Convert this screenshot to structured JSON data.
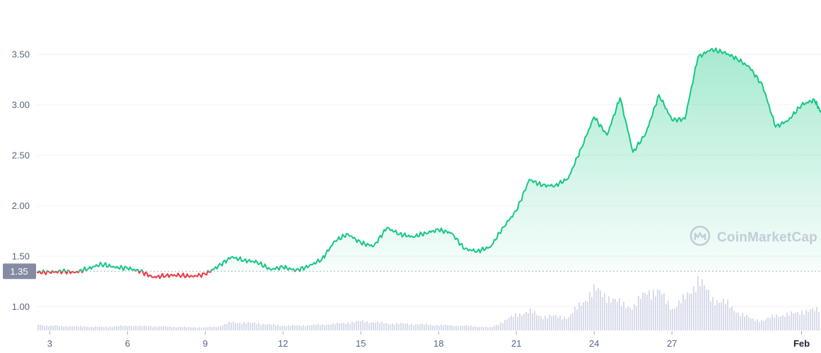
{
  "chart_data": {
    "type": "line",
    "title": "",
    "xlabel": "",
    "ylabel": "",
    "x_range": [
      "2022-01-02T12:00",
      "2022-02-01T18:00"
    ],
    "ylim": [
      0.75,
      3.85
    ],
    "grid": true,
    "reference_line": {
      "value": 1.35,
      "label": "1.35"
    },
    "y_ticks": [
      {
        "value": 1.0,
        "label": "1.00"
      },
      {
        "value": 1.5,
        "label": "1.50"
      },
      {
        "value": 2.0,
        "label": "2.00"
      },
      {
        "value": 2.5,
        "label": "2.50"
      },
      {
        "value": 3.0,
        "label": "3.00"
      },
      {
        "value": 3.5,
        "label": "3.50"
      }
    ],
    "x_ticks": [
      {
        "date": "2022-01-03",
        "label": "3"
      },
      {
        "date": "2022-01-06",
        "label": "6"
      },
      {
        "date": "2022-01-09",
        "label": "9"
      },
      {
        "date": "2022-01-12",
        "label": "12"
      },
      {
        "date": "2022-01-15",
        "label": "15"
      },
      {
        "date": "2022-01-18",
        "label": "18"
      },
      {
        "date": "2022-01-21",
        "label": "21"
      },
      {
        "date": "2022-01-24",
        "label": "24"
      },
      {
        "date": "2022-01-27",
        "label": "27"
      },
      {
        "date": "2022-02-01",
        "label": "Feb"
      }
    ],
    "price_series": {
      "x": [
        "2022-01-02T12:00",
        "2022-01-03T00:00",
        "2022-01-03T12:00",
        "2022-01-04T00:00",
        "2022-01-04T12:00",
        "2022-01-05T00:00",
        "2022-01-05T12:00",
        "2022-01-06T00:00",
        "2022-01-06T12:00",
        "2022-01-07T00:00",
        "2022-01-07T12:00",
        "2022-01-08T00:00",
        "2022-01-08T12:00",
        "2022-01-09T00:00",
        "2022-01-09T12:00",
        "2022-01-10T00:00",
        "2022-01-10T12:00",
        "2022-01-11T00:00",
        "2022-01-11T12:00",
        "2022-01-12T00:00",
        "2022-01-12T12:00",
        "2022-01-13T00:00",
        "2022-01-13T12:00",
        "2022-01-14T00:00",
        "2022-01-14T12:00",
        "2022-01-15T00:00",
        "2022-01-15T12:00",
        "2022-01-16T00:00",
        "2022-01-16T12:00",
        "2022-01-17T00:00",
        "2022-01-17T12:00",
        "2022-01-18T00:00",
        "2022-01-18T12:00",
        "2022-01-19T00:00",
        "2022-01-19T12:00",
        "2022-01-20T00:00",
        "2022-01-20T12:00",
        "2022-01-21T00:00",
        "2022-01-21T12:00",
        "2022-01-22T00:00",
        "2022-01-22T12:00",
        "2022-01-23T00:00",
        "2022-01-23T12:00",
        "2022-01-24T00:00",
        "2022-01-24T12:00",
        "2022-01-25T00:00",
        "2022-01-25T12:00",
        "2022-01-26T00:00",
        "2022-01-26T12:00",
        "2022-01-27T00:00",
        "2022-01-27T12:00",
        "2022-01-28T00:00",
        "2022-01-28T12:00",
        "2022-01-29T00:00",
        "2022-01-29T12:00",
        "2022-01-30T00:00",
        "2022-01-30T12:00",
        "2022-01-31T00:00",
        "2022-01-31T12:00",
        "2022-02-01T00:00",
        "2022-02-01T12:00",
        "2022-02-01T18:00"
      ],
      "values": [
        1.34,
        1.34,
        1.35,
        1.34,
        1.38,
        1.42,
        1.39,
        1.38,
        1.35,
        1.29,
        1.31,
        1.31,
        1.3,
        1.32,
        1.4,
        1.49,
        1.46,
        1.44,
        1.37,
        1.39,
        1.36,
        1.4,
        1.47,
        1.65,
        1.72,
        1.63,
        1.6,
        1.78,
        1.72,
        1.69,
        1.73,
        1.76,
        1.73,
        1.57,
        1.55,
        1.59,
        1.79,
        1.95,
        2.26,
        2.2,
        2.2,
        2.27,
        2.57,
        2.88,
        2.7,
        3.07,
        2.53,
        2.72,
        3.1,
        2.85,
        2.86,
        3.47,
        3.55,
        3.52,
        3.46,
        3.37,
        3.19,
        2.78,
        2.85,
        3.0,
        3.05,
        2.92
      ]
    },
    "volume_series": {
      "x": [
        "2022-01-02T12:00",
        "2022-01-03T00:00",
        "2022-01-04T00:00",
        "2022-01-05T00:00",
        "2022-01-06T00:00",
        "2022-01-07T00:00",
        "2022-01-08T00:00",
        "2022-01-09T00:00",
        "2022-01-09T12:00",
        "2022-01-10T00:00",
        "2022-01-11T00:00",
        "2022-01-12T00:00",
        "2022-01-13T00:00",
        "2022-01-14T00:00",
        "2022-01-15T00:00",
        "2022-01-16T00:00",
        "2022-01-17T00:00",
        "2022-01-18T00:00",
        "2022-01-19T00:00",
        "2022-01-20T00:00",
        "2022-01-20T12:00",
        "2022-01-21T00:00",
        "2022-01-21T12:00",
        "2022-01-22T00:00",
        "2022-01-22T12:00",
        "2022-01-23T00:00",
        "2022-01-23T12:00",
        "2022-01-24T00:00",
        "2022-01-24T12:00",
        "2022-01-25T00:00",
        "2022-01-25T12:00",
        "2022-01-26T00:00",
        "2022-01-26T12:00",
        "2022-01-27T00:00",
        "2022-01-27T12:00",
        "2022-01-28T00:00",
        "2022-01-28T12:00",
        "2022-01-29T00:00",
        "2022-01-29T12:00",
        "2022-01-30T00:00",
        "2022-01-30T12:00",
        "2022-01-31T00:00",
        "2022-01-31T12:00",
        "2022-02-01T00:00",
        "2022-02-01T12:00",
        "2022-02-01T18:00"
      ],
      "values": [
        10,
        8,
        7,
        6,
        8,
        7,
        6,
        5,
        7,
        14,
        12,
        8,
        9,
        11,
        16,
        12,
        11,
        9,
        8,
        5,
        16,
        28,
        32,
        24,
        24,
        23,
        48,
        70,
        58,
        46,
        40,
        68,
        65,
        38,
        56,
        88,
        55,
        48,
        32,
        20,
        17,
        26,
        27,
        33,
        34,
        38
      ]
    },
    "watermark": "CoinMarketCap",
    "colors": {
      "up": "#16c784",
      "down": "#ea3943",
      "fill_top": "#16c784",
      "volume": "#d8dbe9",
      "reference_label_bg": "#858ca2",
      "grid": "#eff2f5",
      "watermark": "#c4ccd8"
    }
  }
}
